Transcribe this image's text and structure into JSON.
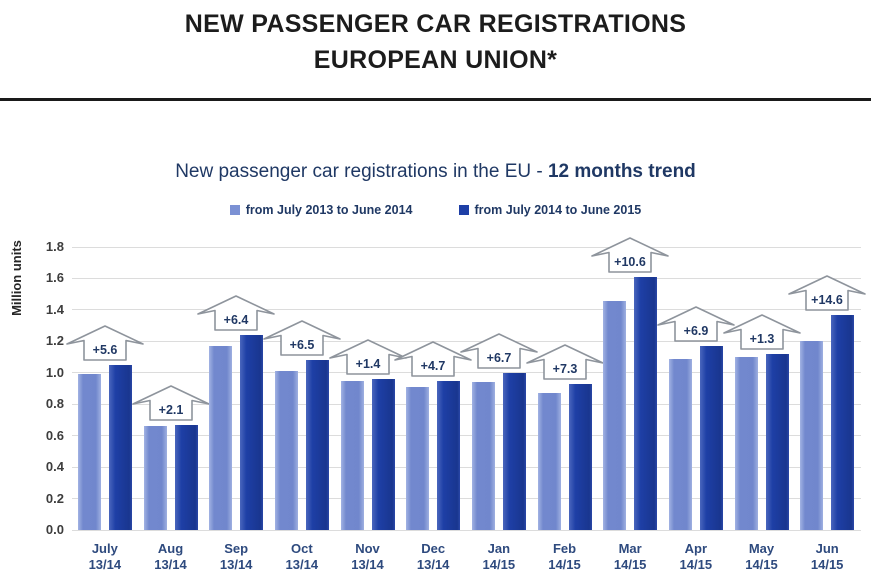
{
  "header": {
    "title_line1": "NEW PASSENGER CAR REGISTRATIONS",
    "title_line2": "EUROPEAN UNION*"
  },
  "chart": {
    "title_prefix": "New passenger car registrations in the EU - ",
    "title_bold": "12 months trend"
  },
  "colors": {
    "light_series": "#7b91d4",
    "dark_series": "#1e3fa6",
    "chart_text": "#1f3864",
    "arrow_outline": "#8e949c",
    "gridline": "#dcdcdc"
  },
  "chart_data": {
    "type": "bar",
    "title": "New passenger car registrations in the EU - 12 months trend",
    "ylabel": "Million units",
    "xlabel": "",
    "ylim": [
      0,
      1.8
    ],
    "ytick_step": 0.2,
    "grid": true,
    "legend_position": "top",
    "categories": [
      "July",
      "Aug",
      "Sep",
      "Oct",
      "Nov",
      "Dec",
      "Jan",
      "Feb",
      "Mar",
      "Apr",
      "May",
      "Jun"
    ],
    "category_sublabels": [
      "13/14",
      "13/14",
      "13/14",
      "13/14",
      "13/14",
      "13/14",
      "14/15",
      "14/15",
      "14/15",
      "14/15",
      "14/15",
      "14/15"
    ],
    "series": [
      {
        "name": "from July 2013 to June 2014",
        "color": "#7b91d4",
        "values": [
          0.99,
          0.66,
          1.17,
          1.01,
          0.95,
          0.91,
          0.94,
          0.87,
          1.46,
          1.09,
          1.1,
          1.2
        ]
      },
      {
        "name": "from July 2014 to June 2015",
        "color": "#1e3fa6",
        "values": [
          1.05,
          0.67,
          1.24,
          1.08,
          0.96,
          0.95,
          1.0,
          0.93,
          1.61,
          1.17,
          1.12,
          1.37
        ]
      }
    ],
    "growth_annotations": [
      "+5.6",
      "+2.1",
      "+6.4",
      "+6.5",
      "+1.4",
      "+4.7",
      "+6.7",
      "+7.3",
      "+10.6",
      "+6.9",
      "+1.3",
      "+14.6"
    ],
    "annotation_style": "up-arrow"
  }
}
